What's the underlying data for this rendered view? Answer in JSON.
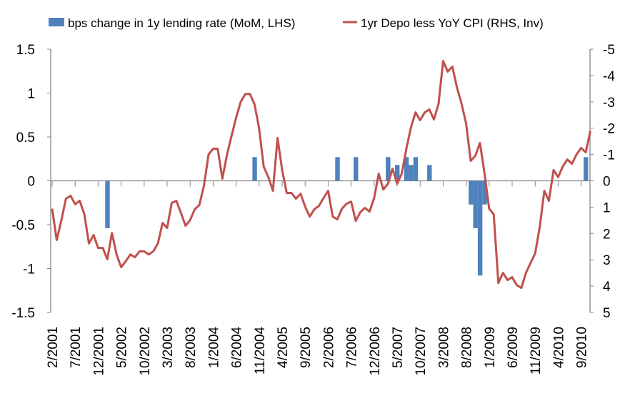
{
  "chart_data": {
    "type": "bar+line",
    "title": "",
    "colors": {
      "bars": "#4F81BD",
      "line": "#C0504D",
      "axis": "#868686"
    },
    "legend": {
      "placement": "top",
      "entries": [
        {
          "name": "bps change in 1y lending rate (MoM, LHS)",
          "kind": "bar"
        },
        {
          "name": "1yr Depo less YoY CPI (RHS, Inv)",
          "kind": "line"
        }
      ]
    },
    "x": {
      "start_month": "2/2001",
      "count": 118,
      "tick_labels": [
        "2/2001",
        "7/2001",
        "12/2001",
        "5/2002",
        "10/2002",
        "3/2003",
        "8/2003",
        "1/2004",
        "6/2004",
        "11/2004",
        "4/2005",
        "9/2005",
        "2/2006",
        "7/2006",
        "12/2006",
        "5/2007",
        "10/2007",
        "3/2008",
        "8/2008",
        "1/2009",
        "6/2009",
        "11/2009",
        "4/2010",
        "9/2010"
      ],
      "tick_every_months": 5
    },
    "y_left": {
      "range": [
        -1.5,
        1.5
      ],
      "ticks": [
        "1.5",
        "1",
        "0.5",
        "0",
        "-0.5",
        "-1",
        "-1.5"
      ],
      "tick_values": [
        1.5,
        1,
        0.5,
        0,
        -0.5,
        -1,
        -1.5
      ]
    },
    "y_right": {
      "range": [
        -5,
        5
      ],
      "inverted": true,
      "ticks": [
        "-5",
        "-4",
        "-3",
        "-2",
        "-1",
        "0",
        "1",
        "2",
        "3",
        "4",
        "5"
      ],
      "tick_values": [
        -5,
        -4,
        -3,
        -2,
        -1,
        0,
        1,
        2,
        3,
        4,
        5
      ]
    },
    "series": [
      {
        "name": "bps change in 1y lending rate (MoM, LHS)",
        "type": "bar",
        "axis": "left",
        "points": [
          [
            12,
            -0.54
          ],
          [
            44,
            0.27
          ],
          [
            62,
            0.27
          ],
          [
            66,
            0.27
          ],
          [
            73,
            0.27
          ],
          [
            75,
            0.18
          ],
          [
            77,
            0.27
          ],
          [
            78,
            0.18
          ],
          [
            79,
            0.27
          ],
          [
            82,
            0.18
          ],
          [
            91,
            -0.27
          ],
          [
            92,
            -0.54
          ],
          [
            93,
            -1.08
          ],
          [
            94,
            -0.27
          ],
          [
            116,
            0.27
          ]
        ]
      },
      {
        "name": "1yr Depo less YoY CPI (RHS, Inv)",
        "type": "line",
        "axis": "right",
        "values": [
          1.06,
          2.25,
          1.5,
          0.68,
          0.57,
          0.89,
          0.76,
          1.27,
          2.38,
          2.06,
          2.55,
          2.55,
          2.98,
          1.98,
          2.8,
          3.28,
          3.06,
          2.8,
          2.9,
          2.68,
          2.68,
          2.8,
          2.68,
          2.38,
          1.6,
          1.79,
          0.84,
          0.76,
          1.22,
          1.71,
          1.49,
          1.08,
          0.92,
          0.19,
          -1.0,
          -1.22,
          -1.22,
          -0.08,
          -0.98,
          -1.71,
          -2.4,
          -3.0,
          -3.3,
          -3.3,
          -2.9,
          -1.98,
          -0.54,
          -0.14,
          0.38,
          -1.63,
          -0.41,
          0.46,
          0.46,
          0.68,
          0.49,
          0.98,
          1.36,
          1.08,
          0.95,
          0.65,
          0.38,
          1.36,
          1.46,
          1.06,
          0.87,
          0.79,
          1.52,
          1.19,
          1.03,
          1.17,
          0.65,
          -0.27,
          0.33,
          0.11,
          -0.46,
          0.11,
          -0.27,
          -1.22,
          -2.03,
          -2.6,
          -2.3,
          -2.6,
          -2.71,
          -2.33,
          -2.93,
          -4.55,
          -4.15,
          -4.34,
          -3.55,
          -2.93,
          -2.17,
          -0.76,
          -0.95,
          -1.44,
          -0.27,
          1.06,
          1.27,
          3.88,
          3.5,
          3.77,
          3.66,
          3.96,
          4.07,
          3.5,
          3.12,
          2.76,
          1.76,
          0.38,
          0.76,
          -0.41,
          -0.14,
          -0.54,
          -0.81,
          -0.65,
          -1.0,
          -1.25,
          -1.08,
          -1.9
        ]
      }
    ]
  }
}
